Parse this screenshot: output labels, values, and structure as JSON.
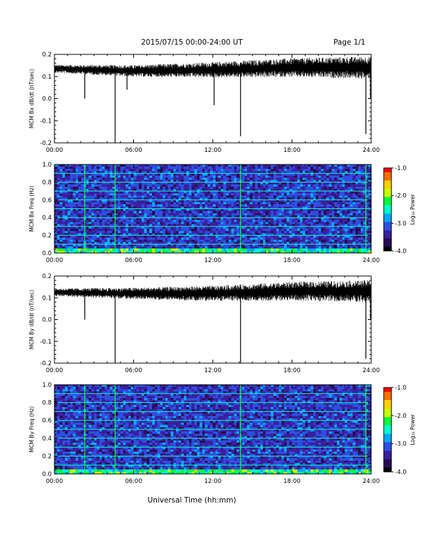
{
  "header": {
    "title": "2015/07/15  00:00-24:00 UT",
    "page": "Page 1/1"
  },
  "xaxis": {
    "label": "Universal Time (hh:mm)",
    "ticks": [
      "00:00",
      "06:00",
      "12:00",
      "18:00",
      "24:00"
    ]
  },
  "colors": {
    "trace": "#000000",
    "colormap": [
      "#000000",
      "#2a0a55",
      "#3a1f9e",
      "#2f4ee0",
      "#00a8ff",
      "#00ffd0",
      "#00ff3a",
      "#c8ff00",
      "#ffd000",
      "#ff7000",
      "#ff0000"
    ]
  },
  "colorbar": {
    "label": "Log₁₀ Power",
    "ticks": [
      "-1.0",
      "-2.0",
      "-3.0",
      "-4.0"
    ]
  },
  "chart_data": [
    {
      "type": "line",
      "panel": "bx-rate",
      "ylabel": "MCM Bx dB/dt (nT/sec)",
      "ytick_labels": [
        "0.2",
        "0.1",
        "0.0",
        "-0.1",
        "-0.2"
      ],
      "ylim": [
        -0.2,
        0.2
      ],
      "xlim_hours": [
        0,
        24
      ],
      "baseline": [
        {
          "hour": 0,
          "value": 0.135
        },
        {
          "hour": 6,
          "value": 0.125
        },
        {
          "hour": 12,
          "value": 0.13
        },
        {
          "hour": 18,
          "value": 0.14
        },
        {
          "hour": 24,
          "value": 0.14
        }
      ],
      "spikes": [
        {
          "hour": 2.3,
          "value": 0.0
        },
        {
          "hour": 4.6,
          "value": -0.2
        },
        {
          "hour": 5.5,
          "value": 0.04
        },
        {
          "hour": 12.1,
          "value": -0.03
        },
        {
          "hour": 14.1,
          "value": -0.17
        },
        {
          "hour": 23.6,
          "value": -0.16
        },
        {
          "hour": 23.95,
          "value": 0.0
        }
      ]
    },
    {
      "type": "heatmap",
      "panel": "bx-spectrogram",
      "ylabel": "MCM Bx Freq (Hz)",
      "ytick_labels": [
        "1.0",
        "0.8",
        "0.6",
        "0.4",
        "0.2",
        "0.0"
      ],
      "ylim": [
        0.0,
        1.0
      ],
      "xlim_hours": [
        0,
        24
      ],
      "zlim_log10_power": [
        -4.0,
        -1.0
      ],
      "harmonic_lines_hz": [
        0.1,
        0.2,
        0.3,
        0.4,
        0.5,
        0.6,
        0.7,
        0.8,
        0.9
      ],
      "event_lines_hours": [
        2.3,
        4.6,
        14.1,
        23.6
      ]
    },
    {
      "type": "line",
      "panel": "by-rate",
      "ylabel": "MCM By dB/dt (nT/sec)",
      "ytick_labels": [
        "0.2",
        "0.1",
        "0.0",
        "-0.1",
        "-0.2"
      ],
      "ylim": [
        -0.2,
        0.2
      ],
      "xlim_hours": [
        0,
        24
      ],
      "baseline": [
        {
          "hour": 0,
          "value": 0.125
        },
        {
          "hour": 6,
          "value": 0.12
        },
        {
          "hour": 12,
          "value": 0.12
        },
        {
          "hour": 18,
          "value": 0.13
        },
        {
          "hour": 24,
          "value": 0.13
        }
      ],
      "spikes": [
        {
          "hour": 2.3,
          "value": 0.0
        },
        {
          "hour": 4.6,
          "value": -0.2
        },
        {
          "hour": 14.1,
          "value": -0.2
        },
        {
          "hour": 23.6,
          "value": -0.18
        },
        {
          "hour": 23.95,
          "value": 0.0
        }
      ]
    },
    {
      "type": "heatmap",
      "panel": "by-spectrogram",
      "ylabel": "MCM By Freq (Hz)",
      "ytick_labels": [
        "1.0",
        "0.8",
        "0.6",
        "0.4",
        "0.2",
        "0.0"
      ],
      "ylim": [
        0.0,
        1.0
      ],
      "xlim_hours": [
        0,
        24
      ],
      "zlim_log10_power": [
        -4.0,
        -1.0
      ],
      "harmonic_lines_hz": [
        0.1,
        0.2,
        0.3,
        0.4,
        0.5,
        0.6,
        0.7,
        0.8,
        0.9
      ],
      "event_lines_hours": [
        2.3,
        4.6,
        14.1,
        23.6
      ]
    }
  ]
}
